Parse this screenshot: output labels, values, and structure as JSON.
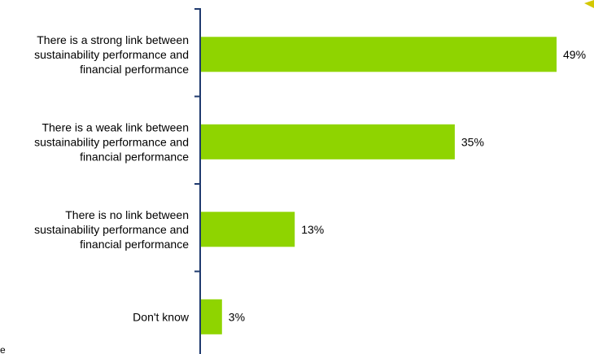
{
  "chart_data": {
    "type": "bar",
    "orientation": "horizontal",
    "categories": [
      "There is a strong link between sustainability performance and financial performance",
      "There is a weak link between sustainability performance and financial performance",
      "There is no link between sustainability performance and financial performance",
      "Don't know"
    ],
    "category_lines": [
      [
        "There is a strong link between",
        "sustainability performance and",
        "financial performance"
      ],
      [
        "There is a weak link between",
        "sustainability performance and",
        "financial performance"
      ],
      [
        "There is no link between",
        "sustainability performance and",
        "financial performance"
      ],
      [
        "Don't know"
      ]
    ],
    "values": [
      49,
      35,
      13,
      3
    ],
    "value_labels": [
      "49%",
      "35%",
      "13%",
      "3%"
    ],
    "unit": "%",
    "xlim": [
      0,
      55
    ],
    "grid": false,
    "legend": "none",
    "bar_color": "#8fd400",
    "axis_color": "#1f3a6e"
  },
  "edge_text": "e",
  "corner_mark_color": "#d4c800"
}
